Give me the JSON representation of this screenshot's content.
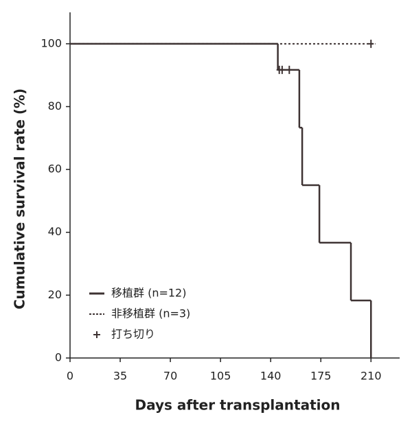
{
  "chart_data": {
    "type": "survival",
    "x_label": "Days after transplantation",
    "y_label": "Cumulative survival rate (%)",
    "xlim": [
      0,
      230
    ],
    "ylim": [
      0,
      110
    ],
    "xticks": [
      0,
      35,
      70,
      105,
      140,
      175,
      210
    ],
    "yticks": [
      0,
      20,
      40,
      60,
      80,
      100
    ],
    "legend_position": "lower left",
    "censor_label": "打ち切り",
    "series": [
      {
        "name": "移植群 (n=12)",
        "color": "#3d3232",
        "style": "solid",
        "x": [
          0,
          145,
          160,
          162,
          174,
          196,
          210
        ],
        "values": [
          100,
          91.7,
          73.3,
          55,
          36.7,
          18.3,
          0
        ],
        "censored_x": [
          146,
          148,
          153
        ],
        "censored_values": [
          91.7,
          91.7,
          91.7
        ]
      },
      {
        "name": "非移植群 (n=3)",
        "color": "#3d3232",
        "style": "dotted",
        "x": [
          0,
          213
        ],
        "values": [
          100,
          100
        ],
        "censored_x": [
          210
        ],
        "censored_values": [
          100
        ]
      }
    ]
  }
}
